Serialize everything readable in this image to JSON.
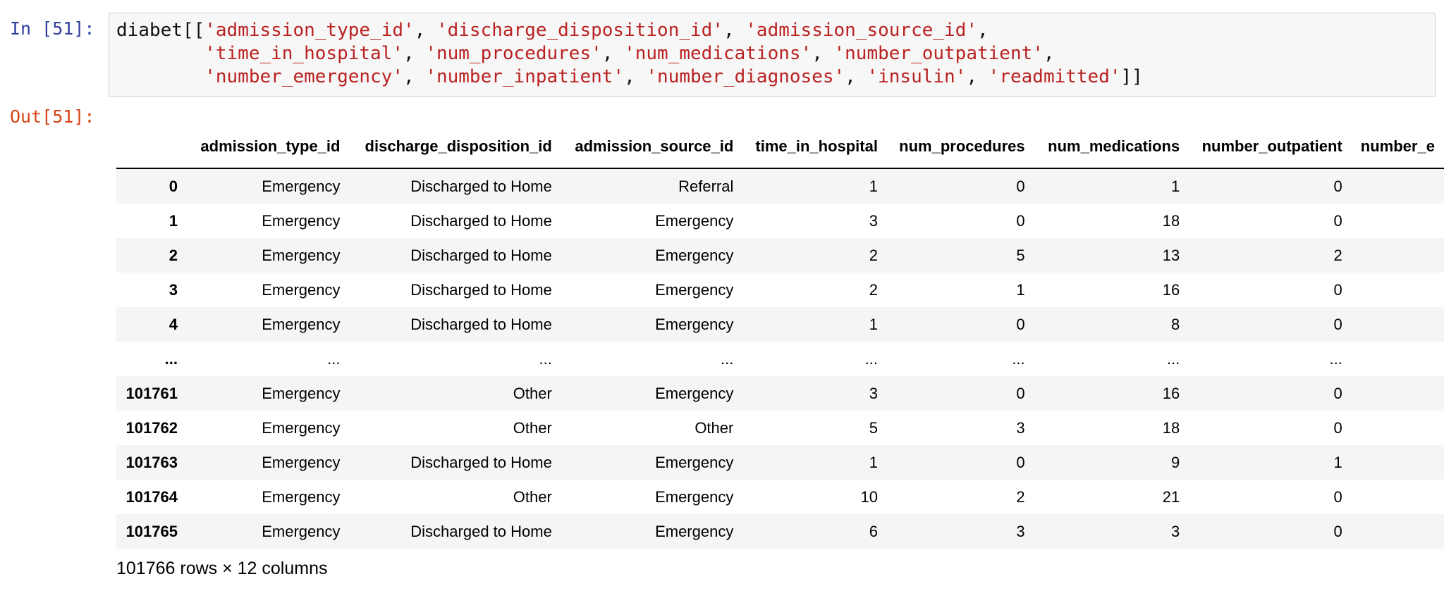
{
  "input": {
    "prompt": "In [51]:",
    "code": [
      [
        "diabet[[",
        "'admission_type_id'",
        ", ",
        "'discharge_disposition_id'",
        ", ",
        "'admission_source_id'",
        ","
      ],
      [
        "        'time_in_hospital'",
        ", ",
        "'num_procedures'",
        ", ",
        "'num_medications'",
        ", ",
        "'number_outpatient'",
        ","
      ],
      [
        "        'number_emergency'",
        ", ",
        "'number_inpatient'",
        ", ",
        "'number_diagnoses'",
        ", ",
        "'insulin'",
        ", ",
        "'readmitted'",
        "]]"
      ]
    ]
  },
  "output": {
    "prompt": "Out[51]:",
    "table": {
      "columns": [
        "admission_type_id",
        "discharge_disposition_id",
        "admission_source_id",
        "time_in_hospital",
        "num_procedures",
        "num_medications",
        "number_outpatient",
        "number_e"
      ],
      "rows": [
        [
          "0",
          "Emergency",
          "Discharged to Home",
          "Referral",
          1,
          0,
          1,
          0
        ],
        [
          "1",
          "Emergency",
          "Discharged to Home",
          "Emergency",
          3,
          0,
          18,
          0
        ],
        [
          "2",
          "Emergency",
          "Discharged to Home",
          "Emergency",
          2,
          5,
          13,
          2
        ],
        [
          "3",
          "Emergency",
          "Discharged to Home",
          "Emergency",
          2,
          1,
          16,
          0
        ],
        [
          "4",
          "Emergency",
          "Discharged to Home",
          "Emergency",
          1,
          0,
          8,
          0
        ],
        [
          "...",
          "...",
          "...",
          "...",
          "...",
          "...",
          "...",
          "..."
        ],
        [
          "101761",
          "Emergency",
          "Other",
          "Emergency",
          3,
          0,
          16,
          0
        ],
        [
          "101762",
          "Emergency",
          "Other",
          "Other",
          5,
          3,
          18,
          0
        ],
        [
          "101763",
          "Emergency",
          "Discharged to Home",
          "Emergency",
          1,
          0,
          9,
          1
        ],
        [
          "101764",
          "Emergency",
          "Other",
          "Emergency",
          10,
          2,
          21,
          0
        ],
        [
          "101765",
          "Emergency",
          "Discharged to Home",
          "Emergency",
          6,
          3,
          3,
          0
        ]
      ]
    },
    "footer": "101766 rows × 12 columns"
  }
}
